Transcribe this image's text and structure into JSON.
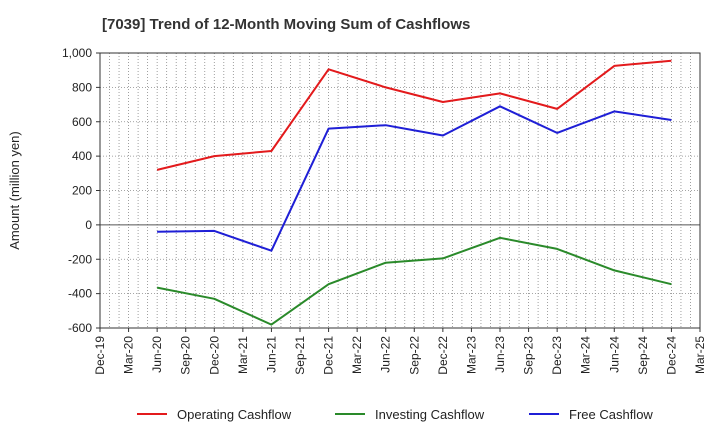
{
  "chart_data": {
    "type": "line",
    "title": "[7039]  Trend of 12-Month Moving Sum of Cashflows",
    "ylabel": "Amount (million yen)",
    "xlabel": "",
    "ylim": [
      -600,
      1000
    ],
    "yticks": [
      1000,
      800,
      600,
      400,
      200,
      0,
      -200,
      -400,
      -600
    ],
    "ytick_labels": [
      "1,000",
      "800",
      "600",
      "400",
      "200",
      "0",
      "-200",
      "-400",
      "-600"
    ],
    "categories": [
      "Dec-19",
      "Mar-20",
      "Jun-20",
      "Sep-20",
      "Dec-20",
      "Mar-21",
      "Jun-21",
      "Sep-21",
      "Dec-21",
      "Mar-22",
      "Jun-22",
      "Sep-22",
      "Dec-22",
      "Mar-23",
      "Jun-23",
      "Sep-23",
      "Dec-23",
      "Mar-24",
      "Jun-24",
      "Sep-24",
      "Dec-24",
      "Mar-25"
    ],
    "grid": true,
    "legend_position": "bottom",
    "series": [
      {
        "name": "Operating Cashflow",
        "color": "#e31a1c",
        "points": [
          [
            "Jun-20",
            320
          ],
          [
            "Dec-20",
            400
          ],
          [
            "Jun-21",
            430
          ],
          [
            "Dec-21",
            905
          ],
          [
            "Jun-22",
            800
          ],
          [
            "Dec-22",
            715
          ],
          [
            "Jun-23",
            765
          ],
          [
            "Dec-23",
            675
          ],
          [
            "Jun-24",
            925
          ],
          [
            "Dec-24",
            955
          ]
        ]
      },
      {
        "name": "Investing Cashflow",
        "color": "#2a8a2a",
        "points": [
          [
            "Jun-20",
            -365
          ],
          [
            "Dec-20",
            -430
          ],
          [
            "Jun-21",
            -580
          ],
          [
            "Dec-21",
            -345
          ],
          [
            "Jun-22",
            -220
          ],
          [
            "Dec-22",
            -195
          ],
          [
            "Jun-23",
            -75
          ],
          [
            "Dec-23",
            -140
          ],
          [
            "Jun-24",
            -265
          ],
          [
            "Dec-24",
            -345
          ]
        ]
      },
      {
        "name": "Free Cashflow",
        "color": "#1f1fd6",
        "points": [
          [
            "Jun-20",
            -40
          ],
          [
            "Dec-20",
            -35
          ],
          [
            "Jun-21",
            -150
          ],
          [
            "Dec-21",
            560
          ],
          [
            "Jun-22",
            580
          ],
          [
            "Dec-22",
            520
          ],
          [
            "Jun-23",
            690
          ],
          [
            "Dec-23",
            535
          ],
          [
            "Jun-24",
            660
          ],
          [
            "Dec-24",
            610
          ]
        ]
      }
    ]
  }
}
